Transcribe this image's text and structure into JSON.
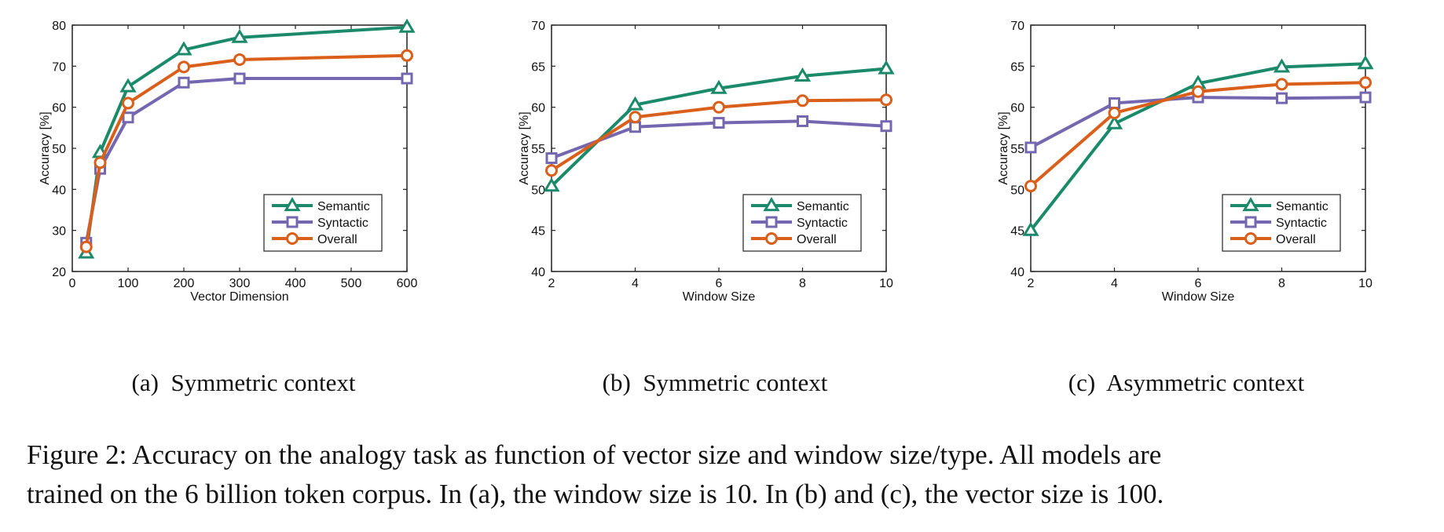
{
  "chart_data": [
    {
      "type": "line",
      "panel_label": "(a)",
      "subtitle": "Symmetric context",
      "xlabel": "Vector Dimension",
      "ylabel": "Accuracy [%]",
      "xlim": [
        0,
        600
      ],
      "ylim": [
        20,
        80
      ],
      "xticks": [
        0,
        100,
        200,
        300,
        400,
        500,
        600
      ],
      "yticks": [
        20,
        30,
        40,
        50,
        60,
        70,
        80
      ],
      "x": [
        25,
        50,
        100,
        200,
        300,
        600
      ],
      "legend_position": "bottom-right",
      "grid": false,
      "series": [
        {
          "name": "Semantic",
          "marker": "triangle",
          "color": "#1b8a6b",
          "values": [
            24.5,
            49,
            65,
            74,
            77,
            79.5
          ]
        },
        {
          "name": "Syntactic",
          "marker": "square",
          "color": "#7467b0",
          "values": [
            27,
            45,
            57.5,
            66,
            67,
            67
          ]
        },
        {
          "name": "Overall",
          "marker": "circle",
          "color": "#d95f1a",
          "values": [
            26,
            46.5,
            61,
            69.8,
            71.6,
            72.6
          ]
        }
      ]
    },
    {
      "type": "line",
      "panel_label": "(b)",
      "subtitle": "Symmetric context",
      "xlabel": "Window Size",
      "ylabel": "Accuracy [%]",
      "xlim": [
        2,
        10
      ],
      "ylim": [
        40,
        70
      ],
      "xticks": [
        2,
        4,
        6,
        8,
        10
      ],
      "yticks": [
        40,
        45,
        50,
        55,
        60,
        65,
        70
      ],
      "x": [
        2,
        4,
        6,
        8,
        10
      ],
      "legend_position": "bottom-right",
      "grid": false,
      "series": [
        {
          "name": "Semantic",
          "marker": "triangle",
          "color": "#1b8a6b",
          "values": [
            50.4,
            60.3,
            62.3,
            63.8,
            64.7
          ]
        },
        {
          "name": "Syntactic",
          "marker": "square",
          "color": "#7467b0",
          "values": [
            53.8,
            57.6,
            58.1,
            58.3,
            57.7
          ]
        },
        {
          "name": "Overall",
          "marker": "circle",
          "color": "#d95f1a",
          "values": [
            52.3,
            58.8,
            60,
            60.8,
            60.9
          ]
        }
      ]
    },
    {
      "type": "line",
      "panel_label": "(c)",
      "subtitle": "Asymmetric context",
      "xlabel": "Window Size",
      "ylabel": "Accuracy [%]",
      "xlim": [
        2,
        10
      ],
      "ylim": [
        40,
        70
      ],
      "xticks": [
        2,
        4,
        6,
        8,
        10
      ],
      "yticks": [
        40,
        45,
        50,
        55,
        60,
        65,
        70
      ],
      "x": [
        2,
        4,
        6,
        8,
        10
      ],
      "legend_position": "bottom-right",
      "grid": false,
      "series": [
        {
          "name": "Semantic",
          "marker": "triangle",
          "color": "#1b8a6b",
          "values": [
            45,
            58,
            62.9,
            64.9,
            65.3
          ]
        },
        {
          "name": "Syntactic",
          "marker": "square",
          "color": "#7467b0",
          "values": [
            55.1,
            60.5,
            61.2,
            61.1,
            61.2
          ]
        },
        {
          "name": "Overall",
          "marker": "circle",
          "color": "#d95f1a",
          "values": [
            50.4,
            59.3,
            61.9,
            62.8,
            63
          ]
        }
      ]
    }
  ],
  "caption": {
    "line1": "Figure 2: Accuracy on the analogy task as function of vector size and window size/type. All models are",
    "line2": "trained on the 6 billion token corpus. In (a), the window size is 10. In (b) and (c), the vector size is 100."
  }
}
